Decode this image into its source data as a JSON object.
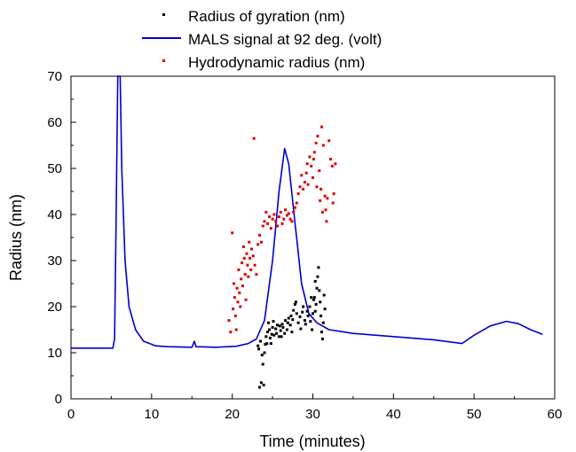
{
  "chart_data": {
    "type": "scatter",
    "title": "",
    "xlabel": "Time (minutes)",
    "ylabel": "Radius (nm)",
    "xlim": [
      0,
      60
    ],
    "ylim": [
      0,
      70
    ],
    "xticks": [
      "0",
      "10",
      "20",
      "30",
      "40",
      "50",
      "60"
    ],
    "yticks": [
      "0",
      "10",
      "20",
      "30",
      "40",
      "50",
      "60",
      "70"
    ],
    "legend_position": "top-center",
    "series": [
      {
        "name": "Radius of gyration (nm)",
        "kind": "scatter",
        "color": "#000000",
        "points": [
          [
            23.4,
            2.5
          ],
          [
            23.6,
            3.5
          ],
          [
            23.9,
            3.0
          ],
          [
            23.2,
            11.5
          ],
          [
            23.3,
            10.8
          ],
          [
            23.5,
            12.5
          ],
          [
            23.7,
            9.5
          ],
          [
            23.8,
            7.5
          ],
          [
            24.0,
            10.0
          ],
          [
            24.1,
            11.8
          ],
          [
            24.2,
            13.5
          ],
          [
            24.3,
            12.0
          ],
          [
            24.4,
            14.5
          ],
          [
            24.5,
            16.5
          ],
          [
            24.6,
            15.0
          ],
          [
            24.7,
            13.2
          ],
          [
            24.8,
            12.0
          ],
          [
            24.9,
            14.0
          ],
          [
            25.0,
            15.5
          ],
          [
            25.1,
            16.8
          ],
          [
            25.2,
            13.8
          ],
          [
            25.4,
            15.2
          ],
          [
            25.5,
            14.2
          ],
          [
            25.6,
            16.0
          ],
          [
            25.8,
            13.5
          ],
          [
            25.9,
            15.8
          ],
          [
            26.0,
            14.8
          ],
          [
            26.2,
            16.2
          ],
          [
            26.3,
            15.5
          ],
          [
            26.5,
            14.2
          ],
          [
            26.6,
            17.0
          ],
          [
            26.8,
            15.0
          ],
          [
            26.9,
            16.5
          ],
          [
            27.0,
            17.5
          ],
          [
            27.2,
            16.0
          ],
          [
            27.3,
            18.0
          ],
          [
            27.5,
            17.2
          ],
          [
            27.6,
            19.2
          ],
          [
            27.8,
            20.5
          ],
          [
            27.9,
            21.0
          ],
          [
            28.0,
            18.5
          ],
          [
            28.2,
            16.5
          ],
          [
            28.4,
            17.8
          ],
          [
            28.5,
            15.2
          ],
          [
            28.7,
            18.8
          ],
          [
            28.8,
            20.0
          ],
          [
            29.0,
            17.0
          ],
          [
            29.1,
            16.2
          ],
          [
            29.3,
            19.0
          ],
          [
            29.4,
            18.0
          ],
          [
            29.6,
            20.0
          ],
          [
            29.7,
            16.8
          ],
          [
            29.9,
            15.0
          ],
          [
            30.0,
            18.5
          ],
          [
            30.1,
            21.5
          ],
          [
            30.2,
            22.0
          ],
          [
            30.3,
            19.0
          ],
          [
            30.4,
            20.5
          ],
          [
            30.5,
            24.0
          ],
          [
            30.6,
            26.5
          ],
          [
            30.7,
            28.5
          ],
          [
            30.8,
            23.5
          ],
          [
            30.9,
            21.0
          ],
          [
            31.0,
            18.0
          ],
          [
            31.1,
            14.5
          ],
          [
            31.2,
            13.0
          ],
          [
            31.3,
            16.5
          ],
          [
            31.4,
            22.5
          ],
          [
            31.5,
            19.5
          ],
          [
            30.3,
            25.5
          ],
          [
            29.8,
            22.0
          ],
          [
            27.4,
            14.5
          ],
          [
            26.1,
            13.5
          ]
        ]
      },
      {
        "name": "MALS signal at 92 deg. (volt)",
        "kind": "line",
        "color": "#0000cc",
        "points": [
          [
            0,
            11
          ],
          [
            5.2,
            11
          ],
          [
            5.4,
            13
          ],
          [
            5.6,
            40
          ],
          [
            5.8,
            70
          ],
          [
            6.1,
            70
          ],
          [
            6.3,
            50
          ],
          [
            6.7,
            30
          ],
          [
            7.2,
            20
          ],
          [
            8.0,
            15
          ],
          [
            9.0,
            12.5
          ],
          [
            10.5,
            11.5
          ],
          [
            12.0,
            11.3
          ],
          [
            15.0,
            11.2
          ],
          [
            15.3,
            12.5
          ],
          [
            15.5,
            11.3
          ],
          [
            18.0,
            11.2
          ],
          [
            20.5,
            11.4
          ],
          [
            22.0,
            12.0
          ],
          [
            23.0,
            13.0
          ],
          [
            24.0,
            17.0
          ],
          [
            25.0,
            30.0
          ],
          [
            25.8,
            45.0
          ],
          [
            26.5,
            54.3
          ],
          [
            27.0,
            51.0
          ],
          [
            27.8,
            38.0
          ],
          [
            28.6,
            25.0
          ],
          [
            29.5,
            18.5
          ],
          [
            30.5,
            16.5
          ],
          [
            32.0,
            15.0
          ],
          [
            35.0,
            14.2
          ],
          [
            40.0,
            13.5
          ],
          [
            45.0,
            12.8
          ],
          [
            48.5,
            12.0
          ],
          [
            50.0,
            13.8
          ],
          [
            52.0,
            15.8
          ],
          [
            54.0,
            16.8
          ],
          [
            55.5,
            16.3
          ],
          [
            57.0,
            15.0
          ],
          [
            58.5,
            14.0
          ]
        ]
      },
      {
        "name": "Hydrodynamic radius (nm)",
        "kind": "scatter",
        "color": "#dd0000",
        "points": [
          [
            19.6,
            17.0
          ],
          [
            19.8,
            14.5
          ],
          [
            20.0,
            36.0
          ],
          [
            20.1,
            19.5
          ],
          [
            20.2,
            25.0
          ],
          [
            20.3,
            22.0
          ],
          [
            20.4,
            18.0
          ],
          [
            20.5,
            15.0
          ],
          [
            20.6,
            24.0
          ],
          [
            20.7,
            21.0
          ],
          [
            20.8,
            28.0
          ],
          [
            20.9,
            23.0
          ],
          [
            21.0,
            20.0
          ],
          [
            21.1,
            26.0
          ],
          [
            21.2,
            29.5
          ],
          [
            21.3,
            24.5
          ],
          [
            21.4,
            33.0
          ],
          [
            21.5,
            30.5
          ],
          [
            21.6,
            27.0
          ],
          [
            21.7,
            21.5
          ],
          [
            21.8,
            31.5
          ],
          [
            21.9,
            29.0
          ],
          [
            22.0,
            26.5
          ],
          [
            22.1,
            34.0
          ],
          [
            22.2,
            30.5
          ],
          [
            22.3,
            28.0
          ],
          [
            22.4,
            32.5
          ],
          [
            22.6,
            31.0
          ],
          [
            22.7,
            56.5
          ],
          [
            22.8,
            29.0
          ],
          [
            23.0,
            27.0
          ],
          [
            23.2,
            33.5
          ],
          [
            23.4,
            35.5
          ],
          [
            23.6,
            34.0
          ],
          [
            23.8,
            37.5
          ],
          [
            24.0,
            38.5
          ],
          [
            24.2,
            40.5
          ],
          [
            24.4,
            38.0
          ],
          [
            24.6,
            39.5
          ],
          [
            24.8,
            37.0
          ],
          [
            25.0,
            39.0
          ],
          [
            25.2,
            40.0
          ],
          [
            25.4,
            38.5
          ],
          [
            25.6,
            37.5
          ],
          [
            25.8,
            39.5
          ],
          [
            26.0,
            40.5
          ],
          [
            26.2,
            38.0
          ],
          [
            26.4,
            39.0
          ],
          [
            26.6,
            41.0
          ],
          [
            26.8,
            39.8
          ],
          [
            27.0,
            40.2
          ],
          [
            27.2,
            39.0
          ],
          [
            27.4,
            38.5
          ],
          [
            27.6,
            40.5
          ],
          [
            27.8,
            41.5
          ],
          [
            28.0,
            42.5
          ],
          [
            28.2,
            44.5
          ],
          [
            28.4,
            46.0
          ],
          [
            28.6,
            48.5
          ],
          [
            28.8,
            45.5
          ],
          [
            29.0,
            47.0
          ],
          [
            29.2,
            49.0
          ],
          [
            29.4,
            46.5
          ],
          [
            29.6,
            52.5
          ],
          [
            29.8,
            50.5
          ],
          [
            30.0,
            48.0
          ],
          [
            30.2,
            53.5
          ],
          [
            30.4,
            55.5
          ],
          [
            30.6,
            57.0
          ],
          [
            30.8,
            49.5
          ],
          [
            31.0,
            45.5
          ],
          [
            31.1,
            59.0
          ],
          [
            31.3,
            55.0
          ],
          [
            31.5,
            44.0
          ],
          [
            31.6,
            41.0
          ],
          [
            31.8,
            43.5
          ],
          [
            32.0,
            56.0
          ],
          [
            32.2,
            52.0
          ],
          [
            32.4,
            50.5
          ],
          [
            32.5,
            42.5
          ],
          [
            32.6,
            44.5
          ],
          [
            32.8,
            51.0
          ],
          [
            30.5,
            46.0
          ],
          [
            31.7,
            38.5
          ],
          [
            31.2,
            40.5
          ],
          [
            30.9,
            43.0
          ],
          [
            29.3,
            51.0
          ],
          [
            30.1,
            52.0
          ]
        ]
      }
    ]
  }
}
